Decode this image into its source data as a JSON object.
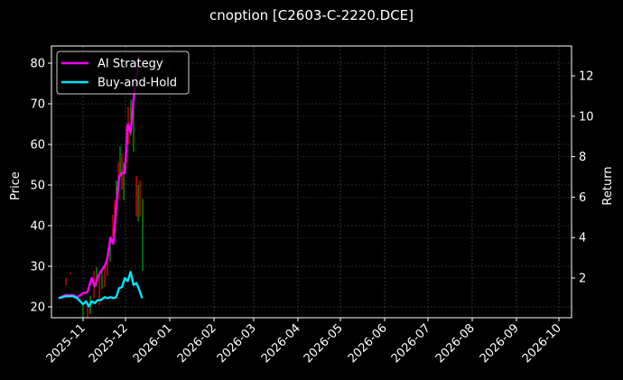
{
  "chart_data": {
    "type": "line",
    "title": "cnoption [C2603-C-2220.DCE]",
    "xlabel": "",
    "ylabel": "Price",
    "ylabel_right": "Return",
    "ylim": [
      18,
      84
    ],
    "ylim_right": [
      0.2,
      13.5
    ],
    "grid": true,
    "legend_position": "upper left",
    "x_ticks": [
      "2025-11",
      "2025-12",
      "2026-01",
      "2026-02",
      "2026-03",
      "2026-04",
      "2026-05",
      "2026-06",
      "2026-07",
      "2026-08",
      "2026-09",
      "2026-10"
    ],
    "y_ticks": [
      20,
      30,
      40,
      50,
      60,
      70,
      80
    ],
    "y_ticks_right": [
      2,
      4,
      6,
      8,
      10,
      12
    ],
    "legend": [
      {
        "name": "AI Strategy",
        "color": "#ff00ff"
      },
      {
        "name": "Buy-and-Hold",
        "color": "#00e5ff"
      }
    ],
    "series": [
      {
        "name": "AI Strategy",
        "axis": "right",
        "color": "#ff00ff",
        "x": [
          "2025-10-15",
          "2025-10-20",
          "2025-10-25",
          "2025-10-28",
          "2025-11-01",
          "2025-11-04",
          "2025-11-07",
          "2025-11-09",
          "2025-11-11",
          "2025-11-13",
          "2025-11-16",
          "2025-11-18",
          "2025-11-20",
          "2025-11-22",
          "2025-11-24",
          "2025-11-26",
          "2025-11-28",
          "2025-11-30",
          "2025-12-02",
          "2025-12-04",
          "2025-12-06",
          "2025-12-08",
          "2025-12-10"
        ],
        "values": [
          1.0,
          1.15,
          1.15,
          1.05,
          1.25,
          1.3,
          2.0,
          1.6,
          2.0,
          2.3,
          2.6,
          3.0,
          4.0,
          3.7,
          5.5,
          7.0,
          7.2,
          7.2,
          9.6,
          9.2,
          10.8,
          12.0,
          13.0
        ]
      },
      {
        "name": "Buy-and-Hold",
        "axis": "right",
        "color": "#00e5ff",
        "x": [
          "2025-10-15",
          "2025-10-20",
          "2025-10-25",
          "2025-10-28",
          "2025-11-01",
          "2025-11-03",
          "2025-11-05",
          "2025-11-07",
          "2025-11-09",
          "2025-11-11",
          "2025-11-13",
          "2025-11-16",
          "2025-11-18",
          "2025-11-20",
          "2025-11-22",
          "2025-11-24",
          "2025-11-26",
          "2025-11-28",
          "2025-11-30",
          "2025-12-02",
          "2025-12-04",
          "2025-12-06",
          "2025-12-08",
          "2025-12-10",
          "2025-12-12"
        ],
        "values": [
          1.0,
          1.1,
          1.1,
          1.0,
          0.7,
          0.85,
          0.6,
          0.85,
          0.75,
          0.9,
          0.9,
          1.05,
          1.0,
          1.05,
          1.0,
          1.05,
          1.5,
          1.55,
          2.0,
          1.85,
          2.3,
          1.65,
          1.75,
          1.4,
          1.0
        ]
      },
      {
        "name": "Price candles (OHLC wicks)",
        "axis": "left",
        "type": "candlestick",
        "up_color": "#00aa00",
        "down_color": "#ff0000",
        "notes": "Sparse wicks from ~2025-10-20 to ~2025-12-15, price range ~18 to ~76"
      }
    ]
  }
}
